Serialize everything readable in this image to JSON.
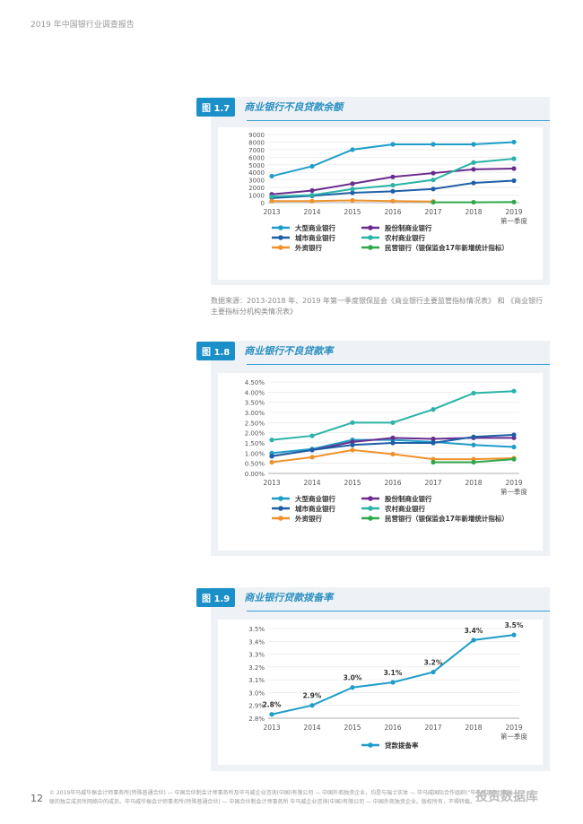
{
  "header": {
    "title": "2019 年中国银行业调查报告"
  },
  "figures": [
    {
      "badge": "图 1.7",
      "title": "商业银行不良贷款余额"
    },
    {
      "badge": "图 1.8",
      "title": "商业银行不良贷款率"
    },
    {
      "badge": "图 1.9",
      "title": "商业银行贷款拨备率"
    }
  ],
  "source": "数据来源：2013-2018 年、2019 年第一季度银保监会《商业银行主要监管指标情况表》 和 《商业银行主要指标分机构类情况表》",
  "footer": {
    "page": "12",
    "text": "© 2019毕马威华振会计师事务所(特殊普通合伙) — 中国合伙制会计师事务所及毕马威企业咨询(中国)有限公司 — 中国外商独资企业，均是与瑞士实体 — 毕马威国际合作组织(“毕马威国际”)相关联的独立成员所网络中的成员。毕马威华振会计师事务所(特殊普通合伙) — 中国合伙制会计师事务所 毕马威企业咨询(中国)有限公司 — 中国外商独资企业。版权所有，不得转载。",
    "watermark": "投资数据库"
  },
  "chart_data": [
    {
      "type": "line",
      "title": "商业银行不良贷款余额",
      "x": [
        "2013",
        "2014",
        "2015",
        "2016",
        "2017",
        "2018",
        "2019"
      ],
      "x_sublabel": {
        "index": 6,
        "text": "第一季度"
      },
      "ylim": [
        0,
        9000
      ],
      "yticks": [
        "0",
        "1000",
        "2000",
        "3000",
        "4000",
        "5000",
        "6000",
        "7000",
        "8000",
        "9000"
      ],
      "series": [
        {
          "name": "大型商业银行",
          "color": "#1f9dc9",
          "values": [
            3500,
            4800,
            7000,
            7700,
            7700,
            7700,
            8000
          ]
        },
        {
          "name": "股份制商业银行",
          "color": "#6a2c8e",
          "values": [
            1100,
            1600,
            2500,
            3400,
            3900,
            4400,
            4500
          ]
        },
        {
          "name": "城市商业银行",
          "color": "#1f5fa6",
          "values": [
            600,
            900,
            1300,
            1500,
            1800,
            2600,
            2900
          ]
        },
        {
          "name": "农村商业银行",
          "color": "#2ab3a6",
          "values": [
            800,
            1000,
            1800,
            2300,
            3000,
            5300,
            5800
          ]
        },
        {
          "name": "外资银行",
          "color": "#f0922c",
          "values": [
            200,
            200,
            300,
            200,
            150,
            null,
            null
          ]
        },
        {
          "name": "民营银行（银保监会17年新增统计指标）",
          "color": "#2fa84a",
          "values": [
            null,
            null,
            null,
            null,
            50,
            50,
            80
          ]
        }
      ]
    },
    {
      "type": "line",
      "title": "商业银行不良贷款率",
      "x": [
        "2013",
        "2014",
        "2015",
        "2016",
        "2017",
        "2018",
        "2019"
      ],
      "x_sublabel": {
        "index": 6,
        "text": "第一季度"
      },
      "ylim": [
        0,
        4.5
      ],
      "yticks": [
        "0.00%",
        "0.50%",
        "1.00%",
        "1.50%",
        "2.00%",
        "2.50%",
        "3.00%",
        "3.50%",
        "4.00%",
        "4.50%"
      ],
      "series": [
        {
          "name": "大型商业银行",
          "color": "#1f9dc9",
          "values": [
            1.0,
            1.2,
            1.65,
            1.65,
            1.55,
            1.4,
            1.3
          ]
        },
        {
          "name": "股份制商业银行",
          "color": "#6a2c8e",
          "values": [
            0.85,
            1.15,
            1.55,
            1.75,
            1.7,
            1.75,
            1.75
          ]
        },
        {
          "name": "城市商业银行",
          "color": "#1f5fa6",
          "values": [
            0.85,
            1.15,
            1.4,
            1.5,
            1.5,
            1.8,
            1.9
          ]
        },
        {
          "name": "农村商业银行",
          "color": "#2ab3a6",
          "values": [
            1.65,
            1.85,
            2.5,
            2.5,
            3.15,
            3.95,
            4.05
          ]
        },
        {
          "name": "外资银行",
          "color": "#f0922c",
          "values": [
            0.55,
            0.8,
            1.15,
            0.95,
            0.7,
            0.7,
            0.75
          ]
        },
        {
          "name": "民营银行（银保监会17年新增统计指标）",
          "color": "#2fa84a",
          "values": [
            null,
            null,
            null,
            null,
            0.55,
            0.55,
            0.7
          ]
        }
      ]
    },
    {
      "type": "line",
      "title": "商业银行贷款拨备率",
      "x": [
        "2013",
        "2014",
        "2015",
        "2016",
        "2017",
        "2018",
        "2019"
      ],
      "x_sublabel": {
        "index": 6,
        "text": "第一季度"
      },
      "ylim": [
        2.8,
        3.5
      ],
      "yticks": [
        "2.8%",
        "2.9%",
        "3.0%",
        "3.1%",
        "3.2%",
        "3.3%",
        "3.4%",
        "3.5%"
      ],
      "series": [
        {
          "name": "贷款拨备率",
          "color": "#1f9dc9",
          "values": [
            2.83,
            2.9,
            3.04,
            3.08,
            3.16,
            3.41,
            3.45
          ],
          "labels": [
            "2.8%",
            "2.9%",
            "3.0%",
            "3.1%",
            "3.2%",
            "3.4%",
            "3.5%"
          ]
        }
      ]
    }
  ]
}
